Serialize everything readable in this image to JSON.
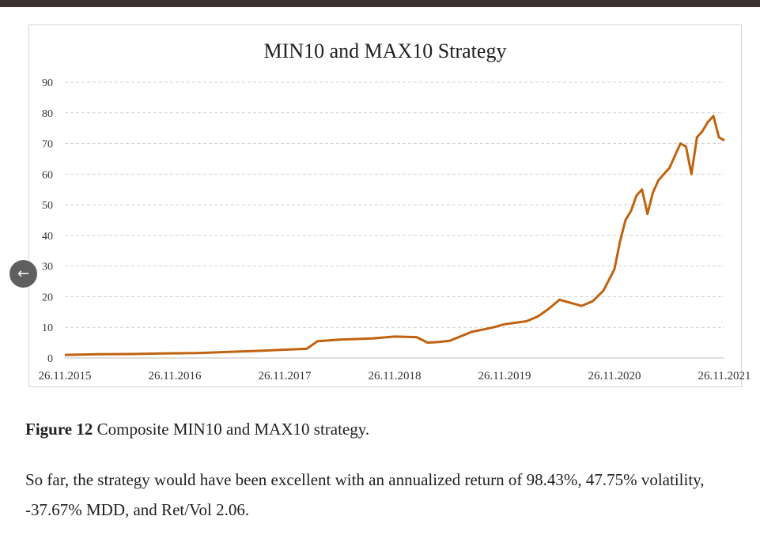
{
  "chart_data": {
    "type": "line",
    "title": "MIN10 and MAX10 Strategy",
    "xlabel": "",
    "ylabel": "",
    "ylim": [
      0,
      90
    ],
    "yticks": [
      0,
      10,
      20,
      30,
      40,
      50,
      60,
      70,
      80,
      90
    ],
    "grid": "horizontal dashed",
    "x_tick_labels": [
      "26.11.2015",
      "26.11.2016",
      "26.11.2017",
      "26.11.2018",
      "26.11.2019",
      "26.11.2020",
      "26.11.2021"
    ],
    "series": [
      {
        "name": "MIN10 and MAX10 Strategy",
        "color": "#c0620f",
        "x": [
          0,
          0.3,
          0.6,
          0.9,
          1.2,
          1.5,
          1.8,
          2.0,
          2.2,
          2.3,
          2.5,
          2.8,
          3.0,
          3.2,
          3.3,
          3.4,
          3.5,
          3.7,
          3.9,
          4.0,
          4.1,
          4.2,
          4.3,
          4.4,
          4.5,
          4.6,
          4.7,
          4.8,
          4.9,
          5.0,
          5.05,
          5.1,
          5.15,
          5.2,
          5.25,
          5.3,
          5.35,
          5.4,
          5.45,
          5.5,
          5.55,
          5.6,
          5.65,
          5.7,
          5.75,
          5.8,
          5.85,
          5.9,
          5.95,
          6.0
        ],
        "values": [
          1.0,
          1.2,
          1.3,
          1.5,
          1.6,
          2.0,
          2.4,
          2.7,
          3.0,
          5.5,
          6.0,
          6.4,
          7.0,
          6.8,
          5.0,
          5.2,
          5.6,
          8.5,
          10.0,
          11.0,
          11.5,
          12.0,
          13.5,
          16.0,
          19.0,
          18.0,
          17.0,
          18.5,
          22.0,
          29.0,
          38.0,
          45.0,
          48.0,
          53.0,
          55.0,
          47.0,
          54.0,
          58.0,
          60.0,
          62.0,
          66.0,
          70.0,
          69.0,
          60.0,
          72.0,
          74.0,
          77.0,
          79.0,
          72.0,
          71.0
        ]
      }
    ]
  },
  "caption": {
    "label": "Figure 12",
    "text": " Composite MIN10 and MAX10 strategy."
  },
  "body_text": "So far, the strategy would have been excellent with an annualized return of 98.43%, 47.75% volatility, -37.67% MDD, and Ret/Vol 2.06.",
  "nav": {
    "back_glyph": "←"
  }
}
